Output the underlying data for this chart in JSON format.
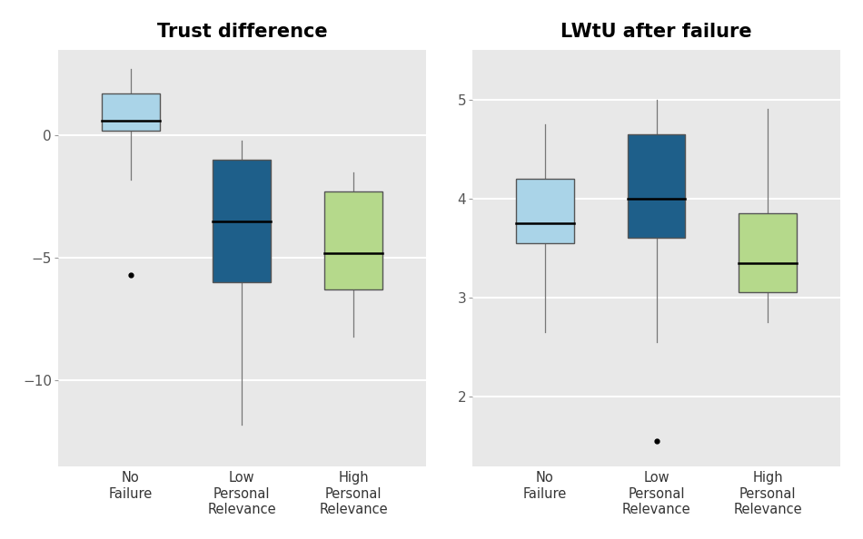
{
  "plot1": {
    "title": "Trust difference",
    "categories": [
      "No\nFailure",
      "Low\nPersonal\nRelevance",
      "High\nPersonal\nRelevance"
    ],
    "colors": [
      "#aad4e8",
      "#1e5f8a",
      "#b5d98b"
    ],
    "edge_color": "#555555",
    "boxes": [
      {
        "q1": 0.2,
        "median": 0.6,
        "q3": 1.7,
        "whisker_low": -1.8,
        "whisker_high": 2.7,
        "outliers": [
          -5.7
        ]
      },
      {
        "q1": -6.0,
        "median": -3.5,
        "q3": -1.0,
        "whisker_low": -11.8,
        "whisker_high": -0.2,
        "outliers": []
      },
      {
        "q1": -6.3,
        "median": -4.8,
        "q3": -2.3,
        "whisker_low": -8.2,
        "whisker_high": -1.5,
        "outliers": []
      }
    ],
    "ylim": [
      -13.5,
      3.5
    ],
    "yticks": [
      0,
      -5,
      -10
    ],
    "ylabel": ""
  },
  "plot2": {
    "title": "LWtU after failure",
    "categories": [
      "No\nFailure",
      "Low\nPersonal\nRelevance",
      "High\nPersonal\nRelevance"
    ],
    "colors": [
      "#aad4e8",
      "#1e5f8a",
      "#b5d98b"
    ],
    "edge_color": "#555555",
    "boxes": [
      {
        "q1": 3.55,
        "median": 3.75,
        "q3": 4.2,
        "whisker_low": 2.65,
        "whisker_high": 4.75,
        "outliers": []
      },
      {
        "q1": 3.6,
        "median": 4.0,
        "q3": 4.65,
        "whisker_low": 2.55,
        "whisker_high": 5.0,
        "outliers": [
          1.55
        ]
      },
      {
        "q1": 3.05,
        "median": 3.35,
        "q3": 3.85,
        "whisker_low": 2.75,
        "whisker_high": 4.9,
        "outliers": []
      }
    ],
    "ylim": [
      1.3,
      5.5
    ],
    "yticks": [
      2,
      3,
      4,
      5
    ],
    "ylabel": ""
  },
  "fig_bg_color": "#ffffff",
  "plot_bg_color": "#e8e8e8",
  "grid_color": "#ffffff",
  "title_fontsize": 15,
  "tick_fontsize": 11,
  "label_fontsize": 10.5,
  "box_width": 0.52
}
